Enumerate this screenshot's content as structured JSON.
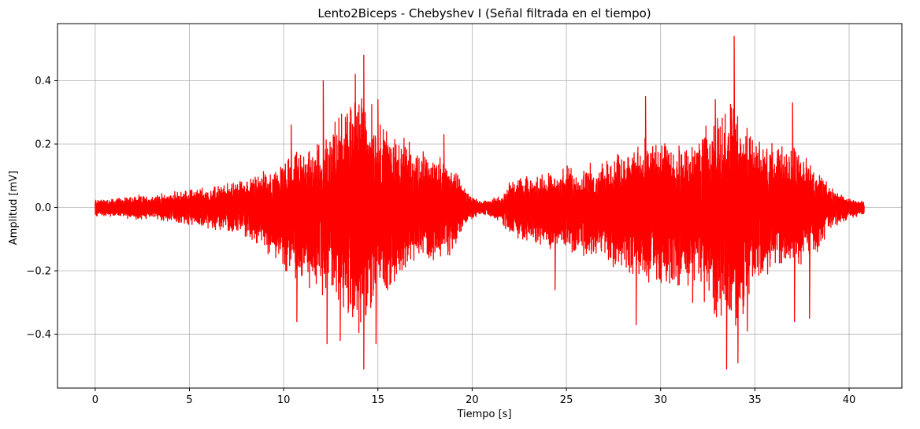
{
  "chart_data": {
    "type": "line",
    "title": "Lento2Biceps - Chebyshev I (Señal filtrada en el tiempo)",
    "xlabel": "Tiempo [s]",
    "ylabel": "Amplitud [mV]",
    "xlim": [
      -2.0,
      42.8
    ],
    "ylim": [
      -0.57,
      0.58
    ],
    "xticks": [
      0,
      5,
      10,
      15,
      20,
      25,
      30,
      35,
      40
    ],
    "xtick_labels": [
      "0",
      "5",
      "10",
      "15",
      "20",
      "25",
      "30",
      "35",
      "40"
    ],
    "yticks": [
      -0.4,
      -0.2,
      0.0,
      0.2,
      0.4
    ],
    "ytick_labels": [
      "−0.4",
      "−0.2",
      "0.0",
      "0.2",
      "0.4"
    ],
    "grid": true,
    "legend": "none",
    "line_color": "#ff0000",
    "series": [
      {
        "x_range": [
          0,
          40.8
        ],
        "envelope_times": [
          0,
          1,
          2,
          3,
          4,
          5,
          6,
          7,
          8,
          9,
          10,
          11,
          12,
          13,
          14,
          15,
          16,
          17,
          18,
          19,
          19.8,
          20.5,
          21.5,
          22,
          23,
          24,
          25,
          26,
          27,
          28,
          29,
          30,
          31,
          32,
          33,
          34,
          35,
          36,
          37,
          38,
          39,
          40,
          40.8
        ],
        "envelope_upper": [
          0.03,
          0.03,
          0.04,
          0.04,
          0.05,
          0.06,
          0.07,
          0.08,
          0.1,
          0.12,
          0.15,
          0.2,
          0.22,
          0.32,
          0.42,
          0.3,
          0.24,
          0.2,
          0.18,
          0.14,
          0.05,
          0.02,
          0.04,
          0.09,
          0.1,
          0.12,
          0.14,
          0.14,
          0.16,
          0.2,
          0.22,
          0.22,
          0.22,
          0.22,
          0.32,
          0.36,
          0.22,
          0.22,
          0.2,
          0.16,
          0.08,
          0.03,
          0.02
        ],
        "envelope_lower": [
          -0.03,
          -0.03,
          -0.04,
          -0.04,
          -0.05,
          -0.06,
          -0.07,
          -0.08,
          -0.1,
          -0.14,
          -0.2,
          -0.28,
          -0.3,
          -0.32,
          -0.42,
          -0.32,
          -0.26,
          -0.2,
          -0.18,
          -0.15,
          -0.05,
          -0.02,
          -0.05,
          -0.1,
          -0.12,
          -0.14,
          -0.16,
          -0.17,
          -0.18,
          -0.22,
          -0.26,
          -0.26,
          -0.26,
          -0.26,
          -0.4,
          -0.4,
          -0.26,
          -0.22,
          -0.2,
          -0.18,
          -0.08,
          -0.04,
          -0.02
        ],
        "peaks": [
          {
            "t": 10.4,
            "v": 0.26
          },
          {
            "t": 10.7,
            "v": -0.36
          },
          {
            "t": 12.1,
            "v": 0.4
          },
          {
            "t": 12.3,
            "v": -0.43
          },
          {
            "t": 13.0,
            "v": -0.42
          },
          {
            "t": 13.8,
            "v": 0.42
          },
          {
            "t": 14.25,
            "v": 0.48
          },
          {
            "t": 14.25,
            "v": -0.51
          },
          {
            "t": 14.9,
            "v": -0.43
          },
          {
            "t": 15.0,
            "v": 0.34
          },
          {
            "t": 18.5,
            "v": 0.23
          },
          {
            "t": 24.4,
            "v": -0.26
          },
          {
            "t": 28.7,
            "v": -0.37
          },
          {
            "t": 29.2,
            "v": 0.35
          },
          {
            "t": 31.7,
            "v": -0.3
          },
          {
            "t": 32.9,
            "v": 0.34
          },
          {
            "t": 33.5,
            "v": -0.51
          },
          {
            "t": 33.9,
            "v": 0.54
          },
          {
            "t": 34.1,
            "v": -0.49
          },
          {
            "t": 34.6,
            "v": -0.39
          },
          {
            "t": 37.0,
            "v": 0.33
          },
          {
            "t": 37.1,
            "v": -0.36
          },
          {
            "t": 37.9,
            "v": -0.35
          }
        ]
      }
    ]
  }
}
